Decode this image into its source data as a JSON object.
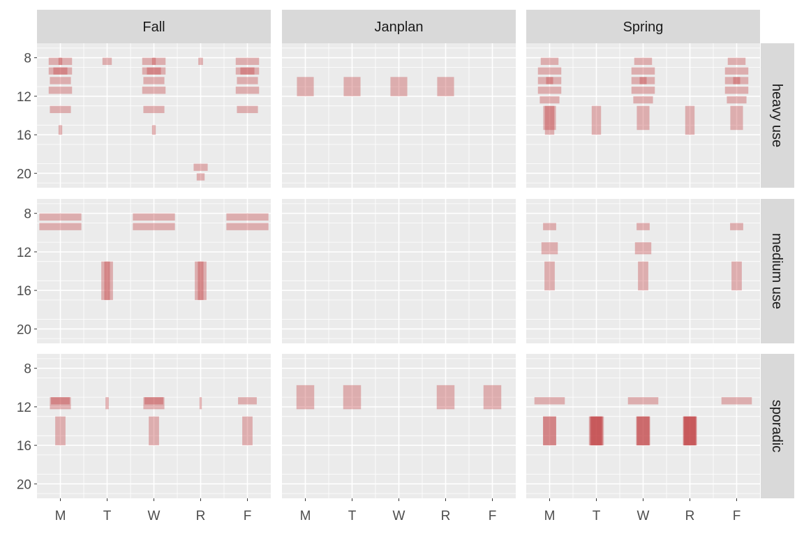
{
  "chart_data": {
    "type": "faceted-tile",
    "col_facets": [
      "Fall",
      "Janplan",
      "Spring"
    ],
    "row_facets": [
      "heavy use",
      "medium use",
      "sporadic"
    ],
    "x_categories": [
      "M",
      "T",
      "W",
      "R",
      "F"
    ],
    "y_ticks": [
      8,
      12,
      16,
      20
    ],
    "y_range": [
      6.5,
      21.5
    ],
    "y_reversed": true,
    "grid": true,
    "fill_color": "#c0393b",
    "tile_alpha": 0.35,
    "tiles": [
      {
        "col": "Fall",
        "row": "heavy use",
        "day": "M",
        "start": 8,
        "end": 8.75,
        "w": 0.5
      },
      {
        "col": "Fall",
        "row": "heavy use",
        "day": "M",
        "start": 8,
        "end": 8.75,
        "w": 0.08
      },
      {
        "col": "Fall",
        "row": "heavy use",
        "day": "M",
        "start": 9,
        "end": 9.75,
        "w": 0.5
      },
      {
        "col": "Fall",
        "row": "heavy use",
        "day": "M",
        "start": 9,
        "end": 9.75,
        "w": 0.3
      },
      {
        "col": "Fall",
        "row": "heavy use",
        "day": "M",
        "start": 10,
        "end": 10.75,
        "w": 0.45
      },
      {
        "col": "Fall",
        "row": "heavy use",
        "day": "M",
        "start": 11,
        "end": 11.75,
        "w": 0.5
      },
      {
        "col": "Fall",
        "row": "heavy use",
        "day": "M",
        "start": 13,
        "end": 13.75,
        "w": 0.45
      },
      {
        "col": "Fall",
        "row": "heavy use",
        "day": "M",
        "start": 15,
        "end": 16,
        "w": 0.08
      },
      {
        "col": "Fall",
        "row": "heavy use",
        "day": "T",
        "start": 8,
        "end": 8.75,
        "w": 0.2
      },
      {
        "col": "Fall",
        "row": "heavy use",
        "day": "W",
        "start": 8,
        "end": 8.75,
        "w": 0.5
      },
      {
        "col": "Fall",
        "row": "heavy use",
        "day": "W",
        "start": 8,
        "end": 8.75,
        "w": 0.08
      },
      {
        "col": "Fall",
        "row": "heavy use",
        "day": "W",
        "start": 9,
        "end": 9.75,
        "w": 0.5
      },
      {
        "col": "Fall",
        "row": "heavy use",
        "day": "W",
        "start": 9,
        "end": 9.75,
        "w": 0.3
      },
      {
        "col": "Fall",
        "row": "heavy use",
        "day": "W",
        "start": 10,
        "end": 10.75,
        "w": 0.45
      },
      {
        "col": "Fall",
        "row": "heavy use",
        "day": "W",
        "start": 11,
        "end": 11.75,
        "w": 0.5
      },
      {
        "col": "Fall",
        "row": "heavy use",
        "day": "W",
        "start": 13,
        "end": 13.75,
        "w": 0.45
      },
      {
        "col": "Fall",
        "row": "heavy use",
        "day": "W",
        "start": 15,
        "end": 16,
        "w": 0.08
      },
      {
        "col": "Fall",
        "row": "heavy use",
        "day": "R",
        "start": 8,
        "end": 8.75,
        "w": 0.1
      },
      {
        "col": "Fall",
        "row": "heavy use",
        "day": "R",
        "start": 19,
        "end": 19.75,
        "w": 0.3
      },
      {
        "col": "Fall",
        "row": "heavy use",
        "day": "R",
        "start": 20,
        "end": 20.75,
        "w": 0.17
      },
      {
        "col": "Fall",
        "row": "heavy use",
        "day": "F",
        "start": 8,
        "end": 8.75,
        "w": 0.5
      },
      {
        "col": "Fall",
        "row": "heavy use",
        "day": "F",
        "start": 9,
        "end": 9.75,
        "w": 0.5
      },
      {
        "col": "Fall",
        "row": "heavy use",
        "day": "F",
        "start": 9,
        "end": 9.75,
        "w": 0.3
      },
      {
        "col": "Fall",
        "row": "heavy use",
        "day": "F",
        "start": 10,
        "end": 10.75,
        "w": 0.45
      },
      {
        "col": "Fall",
        "row": "heavy use",
        "day": "F",
        "start": 11,
        "end": 11.75,
        "w": 0.5
      },
      {
        "col": "Fall",
        "row": "heavy use",
        "day": "F",
        "start": 13,
        "end": 13.75,
        "w": 0.45
      },
      {
        "col": "Fall",
        "row": "medium use",
        "day": "M",
        "start": 8,
        "end": 8.75,
        "w": 0.9
      },
      {
        "col": "Fall",
        "row": "medium use",
        "day": "M",
        "start": 9,
        "end": 9.75,
        "w": 0.9
      },
      {
        "col": "Fall",
        "row": "medium use",
        "day": "T",
        "start": 13,
        "end": 17,
        "w": 0.25
      },
      {
        "col": "Fall",
        "row": "medium use",
        "day": "T",
        "start": 13,
        "end": 17,
        "w": 0.12
      },
      {
        "col": "Fall",
        "row": "medium use",
        "day": "W",
        "start": 8,
        "end": 8.75,
        "w": 0.9
      },
      {
        "col": "Fall",
        "row": "medium use",
        "day": "W",
        "start": 9,
        "end": 9.75,
        "w": 0.9
      },
      {
        "col": "Fall",
        "row": "medium use",
        "day": "R",
        "start": 13,
        "end": 17,
        "w": 0.25
      },
      {
        "col": "Fall",
        "row": "medium use",
        "day": "R",
        "start": 13,
        "end": 17,
        "w": 0.12
      },
      {
        "col": "Fall",
        "row": "medium use",
        "day": "F",
        "start": 8,
        "end": 8.75,
        "w": 0.9
      },
      {
        "col": "Fall",
        "row": "medium use",
        "day": "F",
        "start": 9,
        "end": 9.75,
        "w": 0.9
      },
      {
        "col": "Fall",
        "row": "sporadic",
        "day": "M",
        "start": 11,
        "end": 12.25,
        "w": 0.45
      },
      {
        "col": "Fall",
        "row": "sporadic",
        "day": "M",
        "start": 11,
        "end": 11.75,
        "w": 0.4
      },
      {
        "col": "Fall",
        "row": "sporadic",
        "day": "M",
        "start": 13,
        "end": 16,
        "w": 0.22
      },
      {
        "col": "Fall",
        "row": "sporadic",
        "day": "T",
        "start": 11,
        "end": 12.25,
        "w": 0.07
      },
      {
        "col": "Fall",
        "row": "sporadic",
        "day": "W",
        "start": 11,
        "end": 12.25,
        "w": 0.45
      },
      {
        "col": "Fall",
        "row": "sporadic",
        "day": "W",
        "start": 11,
        "end": 11.75,
        "w": 0.4
      },
      {
        "col": "Fall",
        "row": "sporadic",
        "day": "W",
        "start": 13,
        "end": 16,
        "w": 0.22
      },
      {
        "col": "Fall",
        "row": "sporadic",
        "day": "R",
        "start": 11,
        "end": 12.25,
        "w": 0.05
      },
      {
        "col": "Fall",
        "row": "sporadic",
        "day": "F",
        "start": 11,
        "end": 11.75,
        "w": 0.4
      },
      {
        "col": "Fall",
        "row": "sporadic",
        "day": "F",
        "start": 13,
        "end": 16,
        "w": 0.22
      },
      {
        "col": "Janplan",
        "row": "heavy use",
        "day": "M",
        "start": 10,
        "end": 12,
        "w": 0.36
      },
      {
        "col": "Janplan",
        "row": "heavy use",
        "day": "T",
        "start": 10,
        "end": 12,
        "w": 0.36
      },
      {
        "col": "Janplan",
        "row": "heavy use",
        "day": "W",
        "start": 10,
        "end": 12,
        "w": 0.36
      },
      {
        "col": "Janplan",
        "row": "heavy use",
        "day": "R",
        "start": 10,
        "end": 12,
        "w": 0.36
      },
      {
        "col": "Janplan",
        "row": "sporadic",
        "day": "M",
        "start": 9.75,
        "end": 12.25,
        "w": 0.38
      },
      {
        "col": "Janplan",
        "row": "sporadic",
        "day": "T",
        "start": 9.75,
        "end": 12.25,
        "w": 0.38
      },
      {
        "col": "Janplan",
        "row": "sporadic",
        "day": "R",
        "start": 9.75,
        "end": 12.25,
        "w": 0.38
      },
      {
        "col": "Janplan",
        "row": "sporadic",
        "day": "F",
        "start": 9.75,
        "end": 12.25,
        "w": 0.38
      },
      {
        "col": "Spring",
        "row": "heavy use",
        "day": "M",
        "start": 8,
        "end": 8.75,
        "w": 0.38
      },
      {
        "col": "Spring",
        "row": "heavy use",
        "day": "M",
        "start": 9,
        "end": 9.75,
        "w": 0.5
      },
      {
        "col": "Spring",
        "row": "heavy use",
        "day": "M",
        "start": 10,
        "end": 10.75,
        "w": 0.5
      },
      {
        "col": "Spring",
        "row": "heavy use",
        "day": "M",
        "start": 10,
        "end": 10.75,
        "w": 0.15
      },
      {
        "col": "Spring",
        "row": "heavy use",
        "day": "M",
        "start": 11,
        "end": 11.75,
        "w": 0.5
      },
      {
        "col": "Spring",
        "row": "heavy use",
        "day": "M",
        "start": 12,
        "end": 12.75,
        "w": 0.42
      },
      {
        "col": "Spring",
        "row": "heavy use",
        "day": "M",
        "start": 13,
        "end": 15.5,
        "w": 0.27
      },
      {
        "col": "Spring",
        "row": "heavy use",
        "day": "M",
        "start": 13,
        "end": 16,
        "w": 0.2
      },
      {
        "col": "Spring",
        "row": "heavy use",
        "day": "T",
        "start": 13,
        "end": 16,
        "w": 0.2
      },
      {
        "col": "Spring",
        "row": "heavy use",
        "day": "W",
        "start": 8,
        "end": 8.75,
        "w": 0.38
      },
      {
        "col": "Spring",
        "row": "heavy use",
        "day": "W",
        "start": 9,
        "end": 9.75,
        "w": 0.5
      },
      {
        "col": "Spring",
        "row": "heavy use",
        "day": "W",
        "start": 10,
        "end": 10.75,
        "w": 0.5
      },
      {
        "col": "Spring",
        "row": "heavy use",
        "day": "W",
        "start": 10,
        "end": 10.75,
        "w": 0.15
      },
      {
        "col": "Spring",
        "row": "heavy use",
        "day": "W",
        "start": 11,
        "end": 11.75,
        "w": 0.5
      },
      {
        "col": "Spring",
        "row": "heavy use",
        "day": "W",
        "start": 12,
        "end": 12.75,
        "w": 0.42
      },
      {
        "col": "Spring",
        "row": "heavy use",
        "day": "W",
        "start": 13,
        "end": 15.5,
        "w": 0.27
      },
      {
        "col": "Spring",
        "row": "heavy use",
        "day": "R",
        "start": 13,
        "end": 16,
        "w": 0.2
      },
      {
        "col": "Spring",
        "row": "heavy use",
        "day": "F",
        "start": 8,
        "end": 8.75,
        "w": 0.38
      },
      {
        "col": "Spring",
        "row": "heavy use",
        "day": "F",
        "start": 9,
        "end": 9.75,
        "w": 0.5
      },
      {
        "col": "Spring",
        "row": "heavy use",
        "day": "F",
        "start": 10,
        "end": 10.75,
        "w": 0.5
      },
      {
        "col": "Spring",
        "row": "heavy use",
        "day": "F",
        "start": 10,
        "end": 10.75,
        "w": 0.15
      },
      {
        "col": "Spring",
        "row": "heavy use",
        "day": "F",
        "start": 11,
        "end": 11.75,
        "w": 0.5
      },
      {
        "col": "Spring",
        "row": "heavy use",
        "day": "F",
        "start": 12,
        "end": 12.75,
        "w": 0.42
      },
      {
        "col": "Spring",
        "row": "heavy use",
        "day": "F",
        "start": 13,
        "end": 15.5,
        "w": 0.27
      },
      {
        "col": "Spring",
        "row": "medium use",
        "day": "M",
        "start": 9,
        "end": 9.75,
        "w": 0.28
      },
      {
        "col": "Spring",
        "row": "medium use",
        "day": "M",
        "start": 11,
        "end": 12.25,
        "w": 0.35
      },
      {
        "col": "Spring",
        "row": "medium use",
        "day": "M",
        "start": 13,
        "end": 16,
        "w": 0.22
      },
      {
        "col": "Spring",
        "row": "medium use",
        "day": "W",
        "start": 9,
        "end": 9.75,
        "w": 0.28
      },
      {
        "col": "Spring",
        "row": "medium use",
        "day": "W",
        "start": 11,
        "end": 12.25,
        "w": 0.35
      },
      {
        "col": "Spring",
        "row": "medium use",
        "day": "W",
        "start": 13,
        "end": 16,
        "w": 0.22
      },
      {
        "col": "Spring",
        "row": "medium use",
        "day": "F",
        "start": 9,
        "end": 9.75,
        "w": 0.28
      },
      {
        "col": "Spring",
        "row": "medium use",
        "day": "F",
        "start": 13,
        "end": 16,
        "w": 0.22
      },
      {
        "col": "Spring",
        "row": "sporadic",
        "day": "M",
        "start": 11,
        "end": 11.75,
        "w": 0.65
      },
      {
        "col": "Spring",
        "row": "sporadic",
        "day": "M",
        "start": 13,
        "end": 16,
        "w": 0.28
      },
      {
        "col": "Spring",
        "row": "sporadic",
        "day": "M",
        "start": 13,
        "end": 16,
        "w": 0.28
      },
      {
        "col": "Spring",
        "row": "sporadic",
        "day": "T",
        "start": 13,
        "end": 16,
        "w": 0.32
      },
      {
        "col": "Spring",
        "row": "sporadic",
        "day": "T",
        "start": 13,
        "end": 16,
        "w": 0.28
      },
      {
        "col": "Spring",
        "row": "sporadic",
        "day": "T",
        "start": 13,
        "end": 16,
        "w": 0.26
      },
      {
        "col": "Spring",
        "row": "sporadic",
        "day": "T",
        "start": 13,
        "end": 16,
        "w": 0.22
      },
      {
        "col": "Spring",
        "row": "sporadic",
        "day": "W",
        "start": 11,
        "end": 11.75,
        "w": 0.65
      },
      {
        "col": "Spring",
        "row": "sporadic",
        "day": "W",
        "start": 13,
        "end": 16,
        "w": 0.3
      },
      {
        "col": "Spring",
        "row": "sporadic",
        "day": "W",
        "start": 13,
        "end": 16,
        "w": 0.28
      },
      {
        "col": "Spring",
        "row": "sporadic",
        "day": "W",
        "start": 13,
        "end": 16,
        "w": 0.26
      },
      {
        "col": "Spring",
        "row": "sporadic",
        "day": "R",
        "start": 13,
        "end": 16,
        "w": 0.3
      },
      {
        "col": "Spring",
        "row": "sporadic",
        "day": "R",
        "start": 13,
        "end": 16,
        "w": 0.28
      },
      {
        "col": "Spring",
        "row": "sporadic",
        "day": "R",
        "start": 13,
        "end": 16,
        "w": 0.26
      },
      {
        "col": "Spring",
        "row": "sporadic",
        "day": "R",
        "start": 13,
        "end": 16,
        "w": 0.24
      },
      {
        "col": "Spring",
        "row": "sporadic",
        "day": "F",
        "start": 11,
        "end": 11.75,
        "w": 0.65
      }
    ]
  }
}
